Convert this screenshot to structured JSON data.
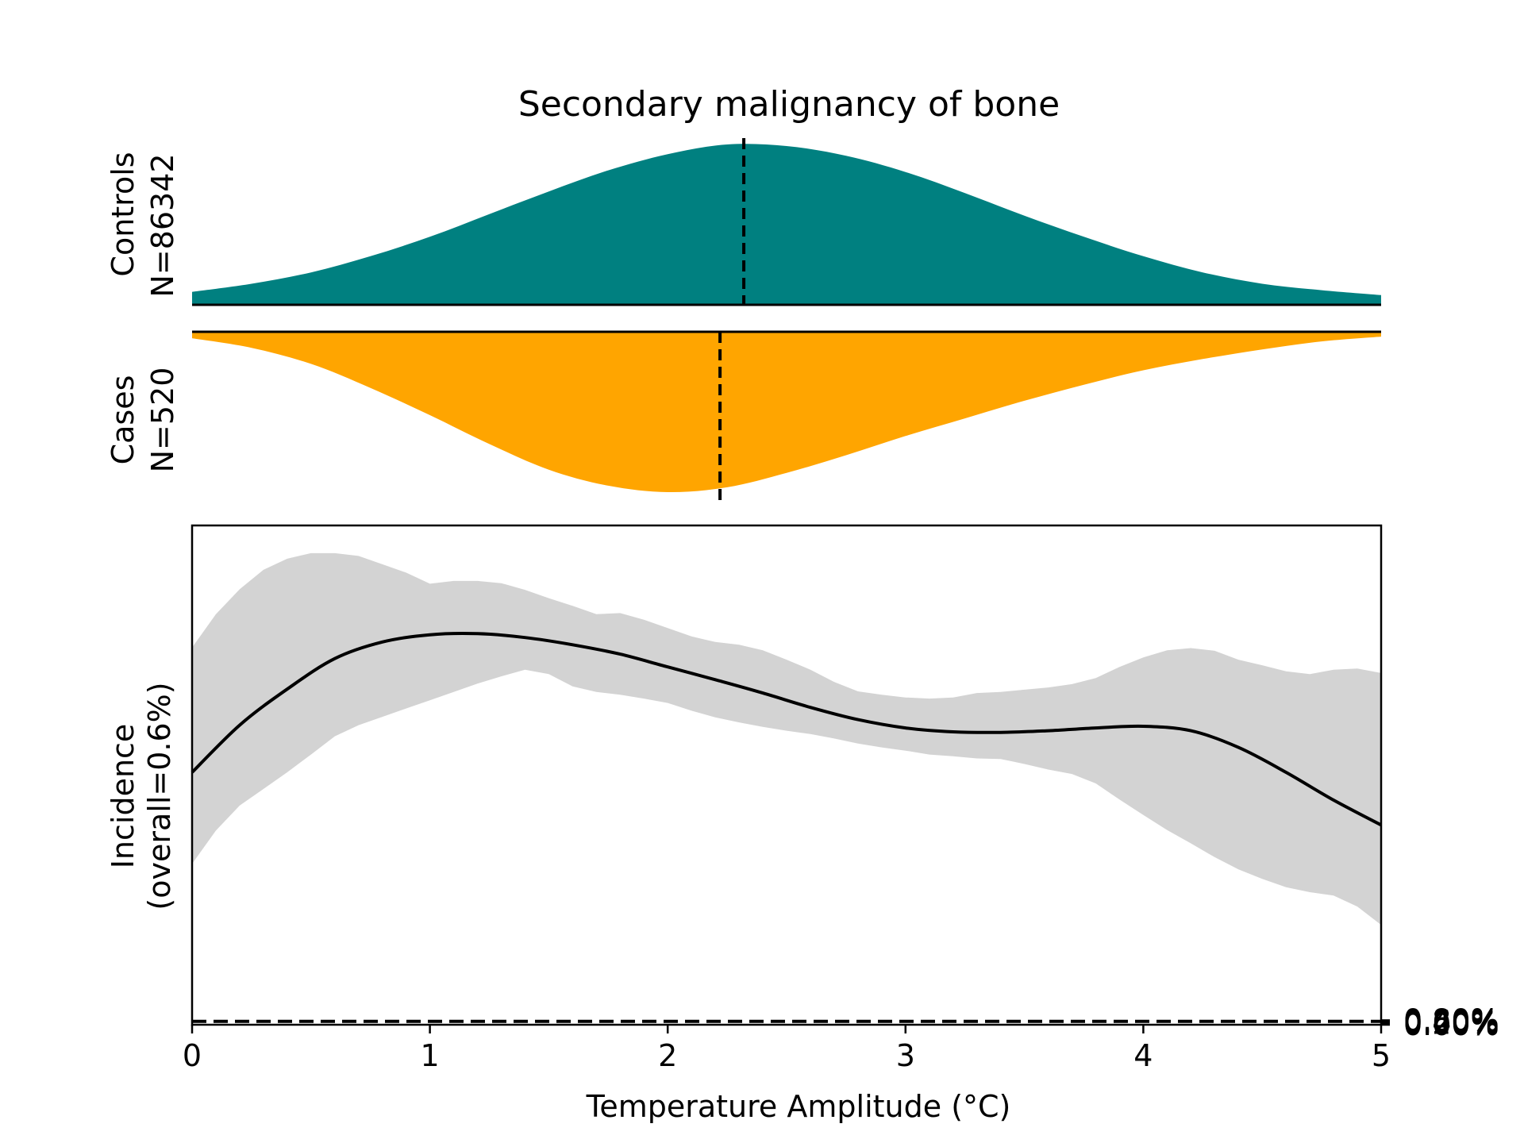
{
  "chart_data": {
    "type": "area",
    "title": "Secondary malignancy of bone",
    "xlabel": "Temperature Amplitude (°C)",
    "ylabel_lines": [
      "Incidence",
      "(overall=0.6%)"
    ],
    "xlim": [
      0,
      5
    ],
    "ylim": [
      0,
      0.9
    ],
    "xticks": [
      0,
      1,
      2,
      3,
      4,
      5
    ],
    "xtick_labels": [
      "0",
      "1",
      "2",
      "3",
      "4",
      "5"
    ],
    "yticks": [
      0,
      0.2,
      0.4,
      0.6,
      0.8
    ],
    "ytick_labels": [
      "0.00%",
      "0.20%",
      "0.40%",
      "0.60%",
      "0.80%"
    ],
    "y_axis_side": "right",
    "grid": false,
    "overall_incidence": 0.6,
    "controls": {
      "label": "Controls",
      "n_label": "N=86342",
      "color": "#008080",
      "median_x": 2.32,
      "density_x": [
        0,
        0.25,
        0.5,
        0.75,
        1.0,
        1.25,
        1.5,
        1.75,
        2.0,
        2.25,
        2.5,
        2.75,
        3.0,
        3.25,
        3.5,
        3.75,
        4.0,
        4.25,
        4.5,
        4.75,
        5.0
      ],
      "density_y": [
        0.08,
        0.13,
        0.2,
        0.3,
        0.42,
        0.56,
        0.7,
        0.83,
        0.93,
        0.99,
        0.98,
        0.92,
        0.82,
        0.69,
        0.55,
        0.42,
        0.3,
        0.2,
        0.13,
        0.09,
        0.06
      ]
    },
    "cases": {
      "label": "Cases",
      "n_label": "N=520",
      "color": "#FFA500",
      "median_x": 2.22,
      "density_x": [
        0,
        0.25,
        0.5,
        0.75,
        1.0,
        1.25,
        1.5,
        1.75,
        2.0,
        2.25,
        2.5,
        2.75,
        3.0,
        3.25,
        3.5,
        3.75,
        4.0,
        4.25,
        4.5,
        4.75,
        5.0
      ],
      "density_y": [
        0.04,
        0.1,
        0.2,
        0.35,
        0.52,
        0.7,
        0.86,
        0.96,
        1.0,
        0.97,
        0.88,
        0.77,
        0.65,
        0.54,
        0.43,
        0.33,
        0.24,
        0.17,
        0.11,
        0.06,
        0.03
      ]
    },
    "series": [
      {
        "type": "line",
        "x": [
          0,
          0.2,
          0.4,
          0.6,
          0.8,
          1.0,
          1.2,
          1.4,
          1.6,
          1.8,
          2.0,
          2.2,
          2.4,
          2.6,
          2.8,
          3.0,
          3.2,
          3.4,
          3.6,
          3.8,
          4.0,
          4.2,
          4.4,
          4.6,
          4.8,
          5.0
        ],
        "y": [
          0.455,
          0.54,
          0.605,
          0.66,
          0.69,
          0.703,
          0.705,
          0.698,
          0.685,
          0.668,
          0.645,
          0.622,
          0.598,
          0.572,
          0.55,
          0.535,
          0.528,
          0.527,
          0.53,
          0.535,
          0.538,
          0.53,
          0.5,
          0.455,
          0.405,
          0.36
        ]
      },
      {
        "type": "band",
        "x": [
          0,
          0.1,
          0.2,
          0.3,
          0.4,
          0.5,
          0.6,
          0.7,
          0.8,
          0.9,
          1.0,
          1.1,
          1.2,
          1.3,
          1.4,
          1.5,
          1.6,
          1.7,
          1.8,
          1.9,
          2.0,
          2.1,
          2.2,
          2.3,
          2.4,
          2.5,
          2.6,
          2.7,
          2.8,
          2.9,
          3.0,
          3.1,
          3.2,
          3.3,
          3.4,
          3.5,
          3.6,
          3.7,
          3.8,
          3.9,
          4.0,
          4.1,
          4.2,
          4.3,
          4.4,
          4.5,
          4.6,
          4.7,
          4.8,
          4.9,
          5.0
        ],
        "lower": [
          0.29,
          0.35,
          0.395,
          0.425,
          0.455,
          0.487,
          0.52,
          0.54,
          0.555,
          0.57,
          0.585,
          0.6,
          0.615,
          0.628,
          0.64,
          0.632,
          0.61,
          0.6,
          0.595,
          0.588,
          0.58,
          0.566,
          0.554,
          0.545,
          0.537,
          0.53,
          0.524,
          0.516,
          0.507,
          0.5,
          0.494,
          0.487,
          0.484,
          0.48,
          0.479,
          0.47,
          0.46,
          0.452,
          0.435,
          0.406,
          0.378,
          0.351,
          0.327,
          0.302,
          0.28,
          0.263,
          0.248,
          0.239,
          0.233,
          0.213,
          0.18
        ],
        "upper": [
          0.68,
          0.74,
          0.785,
          0.82,
          0.84,
          0.85,
          0.85,
          0.845,
          0.83,
          0.815,
          0.795,
          0.8,
          0.8,
          0.796,
          0.784,
          0.769,
          0.755,
          0.74,
          0.742,
          0.73,
          0.715,
          0.7,
          0.69,
          0.685,
          0.675,
          0.658,
          0.64,
          0.618,
          0.601,
          0.595,
          0.59,
          0.588,
          0.59,
          0.598,
          0.6,
          0.604,
          0.608,
          0.614,
          0.625,
          0.645,
          0.662,
          0.675,
          0.679,
          0.674,
          0.658,
          0.648,
          0.637,
          0.632,
          0.64,
          0.642,
          0.634
        ]
      }
    ]
  }
}
